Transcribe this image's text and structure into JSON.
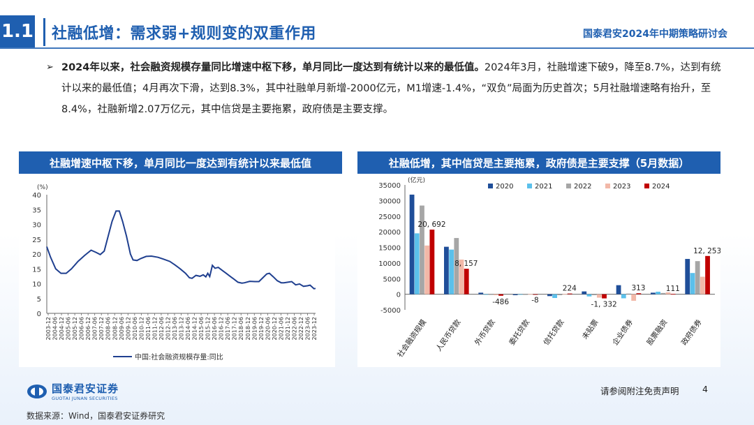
{
  "header": {
    "section_number": "1.1",
    "title": "社融低增：需求弱+规则变的双重作用",
    "brand": "国泰君安2024年中期策略研讨会"
  },
  "bullet": {
    "marker": "➢",
    "bold": "2024年以来，社会融资规模存量同比增速中枢下移，单月同比一度达到有统计以来的最低值。",
    "rest": "2024年3月，社融增速下破9，降至8.7%，达到有统计以来的最低值；4月再次下滑，达到8.3%，其中社融单月新增-2000亿元，M1增速-1.4%，“双负”局面为历史首次；5月社融增速略有抬升，至8.4%，社融新增2.07万亿元，其中信贷是主要拖累，政府债是主要支撑。"
  },
  "left_panel": {
    "title": "社融增速中枢下移，单月同比一度达到有统计以来最低值"
  },
  "right_panel": {
    "title": "社融低增，其中信贷是主要拖累，政府债是主要支撑（5月数据）"
  },
  "colors": {
    "brand": "#1f5fb0",
    "line": "#1f3f8f",
    "s2020": "#1f4e99",
    "s2021": "#5bc0eb",
    "s2022": "#a6a6a6",
    "s2023": "#f2b8a8",
    "s2024": "#c00000"
  },
  "chart_data": [
    {
      "type": "line",
      "unit_label": "(%)",
      "legend": "中国:社会融资规模存量:同比",
      "ylim": [
        0,
        40
      ],
      "yticks": [
        "0",
        "5",
        "10",
        "15",
        "20",
        "25",
        "30",
        "35",
        "40"
      ],
      "x_ticks": [
        "2003-12",
        "2004-06",
        "2004-12",
        "2005-06",
        "2005-12",
        "2006-06",
        "2006-12",
        "2007-06",
        "2007-12",
        "2008-06",
        "2008-12",
        "2009-06",
        "2009-12",
        "2010-06",
        "2010-12",
        "2011-06",
        "2011-12",
        "2012-06",
        "2012-12",
        "2013-06",
        "2013-12",
        "2014-06",
        "2014-12",
        "2015-06",
        "2015-12",
        "2016-06",
        "2016-12",
        "2017-06",
        "2017-12",
        "2018-06",
        "2018-12",
        "2019-06",
        "2019-12",
        "2020-06",
        "2020-12",
        "2021-06",
        "2021-12",
        "2022-06",
        "2022-12",
        "2023-06",
        "2023-12"
      ],
      "x_range": [
        2003.92,
        2024.42
      ],
      "points": [
        [
          2003.92,
          22.5
        ],
        [
          2004.2,
          19
        ],
        [
          2004.6,
          15
        ],
        [
          2005.0,
          13.5
        ],
        [
          2005.4,
          13.5
        ],
        [
          2005.8,
          15
        ],
        [
          2006.3,
          17.5
        ],
        [
          2006.8,
          19.5
        ],
        [
          2007.3,
          21.3
        ],
        [
          2007.7,
          20.5
        ],
        [
          2008.0,
          19.8
        ],
        [
          2008.3,
          21
        ],
        [
          2008.6,
          26
        ],
        [
          2008.9,
          31
        ],
        [
          2009.2,
          34.5
        ],
        [
          2009.45,
          34.5
        ],
        [
          2009.7,
          31
        ],
        [
          2010.0,
          26
        ],
        [
          2010.3,
          20
        ],
        [
          2010.5,
          18
        ],
        [
          2010.8,
          17.8
        ],
        [
          2011.1,
          18.5
        ],
        [
          2011.5,
          19.2
        ],
        [
          2011.9,
          19.3
        ],
        [
          2012.4,
          18.9
        ],
        [
          2012.8,
          18.3
        ],
        [
          2013.3,
          17.5
        ],
        [
          2013.7,
          16.3
        ],
        [
          2014.1,
          15
        ],
        [
          2014.5,
          13.5
        ],
        [
          2014.8,
          12
        ],
        [
          2015.0,
          11.8
        ],
        [
          2015.3,
          12.8
        ],
        [
          2015.6,
          12.5
        ],
        [
          2015.85,
          13
        ],
        [
          2016.05,
          12.3
        ],
        [
          2016.2,
          13.5
        ],
        [
          2016.35,
          12.4
        ],
        [
          2016.55,
          16.2
        ],
        [
          2016.75,
          15.2
        ],
        [
          2017.0,
          15.5
        ],
        [
          2017.3,
          14.5
        ],
        [
          2017.6,
          13.5
        ],
        [
          2017.9,
          12.5
        ],
        [
          2018.2,
          11.5
        ],
        [
          2018.5,
          10.5
        ],
        [
          2018.8,
          10.2
        ],
        [
          2019.0,
          10.3
        ],
        [
          2019.4,
          10.8
        ],
        [
          2019.8,
          10.7
        ],
        [
          2020.1,
          10.7
        ],
        [
          2020.4,
          12
        ],
        [
          2020.7,
          13.3
        ],
        [
          2020.9,
          13.5
        ],
        [
          2021.2,
          12.3
        ],
        [
          2021.5,
          11
        ],
        [
          2021.8,
          10.3
        ],
        [
          2022.0,
          10.3
        ],
        [
          2022.3,
          10.5
        ],
        [
          2022.6,
          10.7
        ],
        [
          2022.9,
          9.6
        ],
        [
          2023.2,
          9.9
        ],
        [
          2023.5,
          9.1
        ],
        [
          2023.8,
          9.3
        ],
        [
          2024.0,
          9.5
        ],
        [
          2024.2,
          8.7
        ],
        [
          2024.3,
          8.3
        ],
        [
          2024.42,
          8.4
        ]
      ]
    },
    {
      "type": "bar",
      "unit_label": "(亿元)",
      "ylim": [
        -5000,
        35000
      ],
      "yticks": [
        "-5000",
        "0",
        "5000",
        "10000",
        "15000",
        "20000",
        "25000",
        "30000",
        "35000"
      ],
      "categories": [
        "社会融资规模",
        "人民币贷款",
        "外币贷款",
        "委托贷款",
        "信托贷款",
        "未贴票",
        "企业债券",
        "股票融资",
        "政府债券"
      ],
      "series": [
        {
          "name": "2020",
          "values": [
            31900,
            15200,
            500,
            -300,
            -600,
            900,
            2900,
            500,
            11300
          ]
        },
        {
          "name": "2021",
          "values": [
            19500,
            14300,
            -100,
            -100,
            -1200,
            -700,
            -1300,
            800,
            6800
          ]
        },
        {
          "name": "2022",
          "values": [
            28400,
            18000,
            -200,
            -200,
            -300,
            -300,
            200,
            400,
            10600
          ]
        },
        {
          "name": "2023",
          "values": [
            15600,
            11100,
            -300,
            100,
            100,
            -1100,
            -2100,
            600,
            5600
          ]
        },
        {
          "name": "2024",
          "values": [
            20692,
            8157,
            -486,
            -8,
            224,
            -1332,
            313,
            111,
            12253
          ]
        }
      ],
      "labels": [
        "20, 692",
        "8, 157",
        "-486",
        "-8",
        "224",
        "-1, 332",
        "313",
        "111",
        "12, 253"
      ]
    }
  ],
  "footer": {
    "logo_cn": "国泰君安证券",
    "logo_en": "GUOTAI JUNAN SECURITIES",
    "disclaimer": "请参阅附注免责声明",
    "page": "4",
    "source": "数据来源：Wind，国泰君安证券研究"
  }
}
